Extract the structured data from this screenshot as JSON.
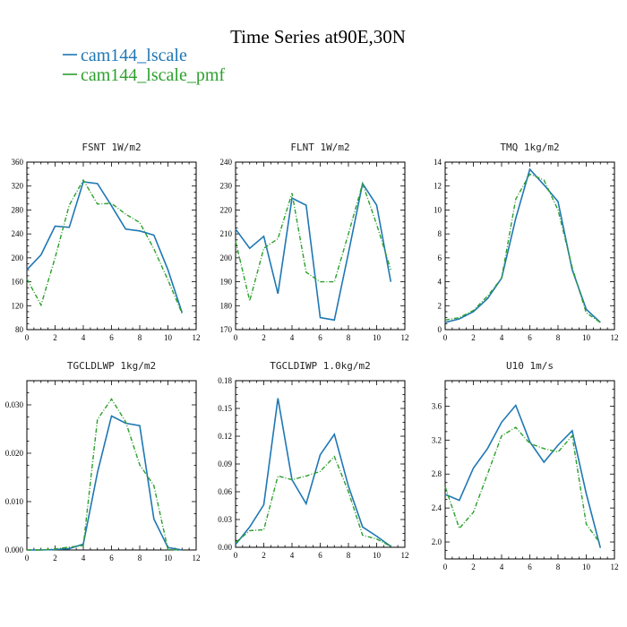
{
  "title": "Time Series at90E,30N",
  "legend": [
    {
      "name": "cam144_lscale",
      "color": "#1f77b4",
      "dash": false
    },
    {
      "name": "cam144_lscale_pmf",
      "color": "#2ca02c",
      "dash": true
    }
  ],
  "chart_data": [
    {
      "type": "line",
      "title": "FSNT  1W/m2",
      "x": [
        0,
        1,
        2,
        3,
        4,
        5,
        6,
        7,
        8,
        9,
        10,
        11
      ],
      "xlim": [
        0,
        12
      ],
      "xticks": [
        0,
        2,
        4,
        6,
        8,
        10,
        12
      ],
      "ylim": [
        80,
        360
      ],
      "yticks": [
        80,
        120,
        160,
        200,
        240,
        280,
        320,
        360
      ],
      "ytick_labels": [
        "80",
        "120",
        "160",
        "200",
        "240",
        "280",
        "320",
        "360"
      ],
      "series": [
        {
          "name": "cam144_lscale",
          "values": [
            180,
            205,
            253,
            251,
            327,
            324,
            287,
            248,
            245,
            238,
            180,
            108
          ]
        },
        {
          "name": "cam144_lscale_pmf",
          "values": [
            165,
            121,
            200,
            288,
            330,
            290,
            291,
            273,
            259,
            215,
            163,
            107
          ]
        }
      ]
    },
    {
      "type": "line",
      "title": "FLNT  1W/m2",
      "x": [
        0,
        1,
        2,
        3,
        4,
        5,
        6,
        7,
        8,
        9,
        10,
        11
      ],
      "xlim": [
        0,
        12
      ],
      "xticks": [
        0,
        2,
        4,
        6,
        8,
        10,
        12
      ],
      "ylim": [
        170,
        240
      ],
      "yticks": [
        170,
        180,
        190,
        200,
        210,
        220,
        230,
        240
      ],
      "ytick_labels": [
        "170",
        "180",
        "190",
        "200",
        "210",
        "220",
        "230",
        "240"
      ],
      "series": [
        {
          "name": "cam144_lscale",
          "values": [
            212,
            204,
            209,
            185,
            225,
            222,
            175,
            174,
            202,
            231,
            222,
            190
          ]
        },
        {
          "name": "cam144_lscale_pmf",
          "values": [
            207,
            182,
            204,
            208,
            227,
            194,
            190,
            190,
            210,
            231,
            214,
            195
          ]
        }
      ]
    },
    {
      "type": "line",
      "title": "TMQ  1kg/m2",
      "x": [
        0,
        1,
        2,
        3,
        4,
        5,
        6,
        7,
        8,
        9,
        10,
        11
      ],
      "xlim": [
        0,
        12
      ],
      "xticks": [
        0,
        2,
        4,
        6,
        8,
        10,
        12
      ],
      "ylim": [
        0,
        14
      ],
      "yticks": [
        0,
        2,
        4,
        6,
        8,
        10,
        12,
        14
      ],
      "ytick_labels": [
        "0",
        "2",
        "4",
        "6",
        "8",
        "10",
        "12",
        "14"
      ],
      "series": [
        {
          "name": "cam144_lscale",
          "values": [
            0.6,
            0.9,
            1.5,
            2.6,
            4.3,
            9.3,
            13.4,
            12.1,
            10.7,
            5.0,
            1.7,
            0.6
          ]
        },
        {
          "name": "cam144_lscale_pmf",
          "values": [
            0.8,
            1.0,
            1.6,
            2.8,
            4.3,
            10.9,
            13.0,
            12.5,
            10.0,
            5.2,
            1.4,
            0.6
          ]
        }
      ]
    },
    {
      "type": "line",
      "title": "TGCLDLWP  1kg/m2",
      "x": [
        0,
        1,
        2,
        3,
        4,
        5,
        6,
        7,
        8,
        9,
        10,
        11
      ],
      "xlim": [
        0,
        12
      ],
      "xticks": [
        0,
        2,
        4,
        6,
        8,
        10,
        12
      ],
      "ylim": [
        0,
        0.035
      ],
      "yticks": [
        0,
        0.01,
        0.02,
        0.03
      ],
      "ytick_labels": [
        "0.000",
        "0.010",
        "0.020",
        "0.030"
      ],
      "series": [
        {
          "name": "cam144_lscale",
          "values": [
            0.0,
            0.0,
            0.0001,
            0.0003,
            0.0012,
            0.016,
            0.0277,
            0.0262,
            0.0257,
            0.0064,
            0.0005,
            0.0
          ]
        },
        {
          "name": "cam144_lscale_pmf",
          "values": [
            0.0,
            0.0,
            0.0002,
            0.0006,
            0.0009,
            0.027,
            0.0312,
            0.0265,
            0.0176,
            0.0133,
            0.0001,
            0.0
          ]
        }
      ]
    },
    {
      "type": "line",
      "title": "TGCLDIWP  1.0kg/m2",
      "x": [
        0,
        1,
        2,
        3,
        4,
        5,
        6,
        7,
        8,
        9,
        10,
        11
      ],
      "xlim": [
        0,
        12
      ],
      "xticks": [
        0,
        2,
        4,
        6,
        8,
        10,
        12
      ],
      "ylim": [
        0,
        0.18
      ],
      "yticks": [
        0,
        0.03,
        0.06,
        0.09,
        0.12,
        0.15,
        0.18
      ],
      "ytick_labels": [
        "0.00",
        "0.03",
        "0.06",
        "0.09",
        "0.12",
        "0.15",
        "0.18"
      ],
      "series": [
        {
          "name": "cam144_lscale",
          "values": [
            0.003,
            0.022,
            0.046,
            0.161,
            0.073,
            0.047,
            0.1,
            0.122,
            0.066,
            0.022,
            0.012,
            0.001
          ]
        },
        {
          "name": "cam144_lscale_pmf",
          "values": [
            0.005,
            0.018,
            0.019,
            0.077,
            0.073,
            0.077,
            0.082,
            0.098,
            0.06,
            0.013,
            0.009,
            0.001
          ]
        }
      ]
    },
    {
      "type": "line",
      "title": "U10  1m/s",
      "x": [
        0,
        1,
        2,
        3,
        4,
        5,
        6,
        7,
        8,
        9,
        10,
        11
      ],
      "xlim": [
        0,
        12
      ],
      "xticks": [
        0,
        2,
        4,
        6,
        8,
        10,
        12
      ],
      "ylim": [
        1.8,
        3.9
      ],
      "yticks": [
        2.0,
        2.4,
        2.8,
        3.2,
        3.6
      ],
      "ytick_labels": [
        "2.0",
        "2.4",
        "2.8",
        "3.2",
        "3.6"
      ],
      "series": [
        {
          "name": "cam144_lscale",
          "values": [
            2.56,
            2.49,
            2.87,
            3.1,
            3.41,
            3.61,
            3.18,
            2.94,
            3.14,
            3.31,
            2.57,
            1.93
          ]
        },
        {
          "name": "cam144_lscale_pmf",
          "values": [
            2.65,
            2.16,
            2.35,
            2.8,
            3.25,
            3.35,
            3.16,
            3.1,
            3.06,
            3.25,
            2.21,
            1.98
          ]
        }
      ]
    }
  ]
}
